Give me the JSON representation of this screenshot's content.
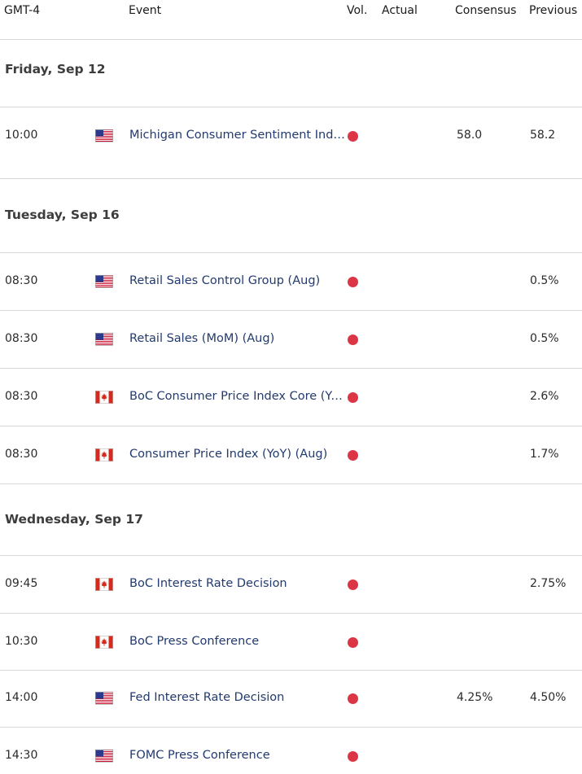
{
  "header": {
    "tz": "GMT-4",
    "event": "Event",
    "vol": "Vol.",
    "actual": "Actual",
    "consensus": "Consensus",
    "previous": "Previous"
  },
  "days": [
    {
      "date": "Friday, Sep 12",
      "events": [
        {
          "time": "10:00",
          "country": "us-flag-icon",
          "name": "Michigan Consumer Sentiment Index (Sep)",
          "volatility": "high",
          "actual": "",
          "consensus": "58.0",
          "previous": "58.2"
        }
      ]
    },
    {
      "date": "Tuesday, Sep 16",
      "events": [
        {
          "time": "08:30",
          "country": "us-flag-icon",
          "name": "Retail Sales Control Group (Aug)",
          "volatility": "high",
          "actual": "",
          "consensus": "",
          "previous": "0.5%"
        },
        {
          "time": "08:30",
          "country": "us-flag-icon",
          "name": "Retail Sales (MoM) (Aug)",
          "volatility": "high",
          "actual": "",
          "consensus": "",
          "previous": "0.5%"
        },
        {
          "time": "08:30",
          "country": "ca-flag-icon",
          "name": "BoC Consumer Price Index Core (YoY) (Aug)",
          "volatility": "high",
          "actual": "",
          "consensus": "",
          "previous": "2.6%"
        },
        {
          "time": "08:30",
          "country": "ca-flag-icon",
          "name": "Consumer Price Index (YoY) (Aug)",
          "volatility": "high",
          "actual": "",
          "consensus": "",
          "previous": "1.7%"
        }
      ]
    },
    {
      "date": "Wednesday, Sep 17",
      "events": [
        {
          "time": "09:45",
          "country": "ca-flag-icon",
          "name": "BoC Interest Rate Decision",
          "volatility": "high",
          "actual": "",
          "consensus": "",
          "previous": "2.75%"
        },
        {
          "time": "10:30",
          "country": "ca-flag-icon",
          "name": "BoC Press Conference",
          "volatility": "high",
          "actual": "",
          "consensus": "",
          "previous": ""
        },
        {
          "time": "14:00",
          "country": "us-flag-icon",
          "name": "Fed Interest Rate Decision",
          "volatility": "high",
          "actual": "",
          "consensus": "4.25%",
          "previous": "4.50%"
        },
        {
          "time": "14:30",
          "country": "us-flag-icon",
          "name": "FOMC Press Conference",
          "volatility": "high",
          "actual": "",
          "consensus": "",
          "previous": ""
        }
      ]
    }
  ],
  "colors": {
    "volatility_high": "#dc3545",
    "event_text": "#223a6e",
    "divider": "#d8d8d8"
  }
}
